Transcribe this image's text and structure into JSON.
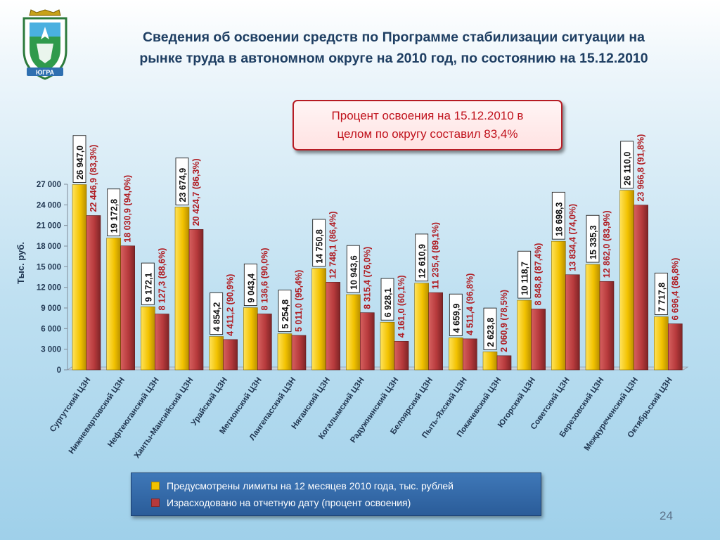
{
  "title_line1": "Сведения об освоении средств по Программе стабилизации ситуации на",
  "title_line2": "рынке труда в автономном округе на 2010 год, по состоянию на 15.12.2010",
  "callout_line1": "Процент освоения на 15.12.2010 в",
  "callout_line2": "целом по округу составил 83,4%",
  "page_number": "24",
  "colors": {
    "planned": "#f2c200",
    "spent": "#b73a3c",
    "title": "#1f3f63",
    "callout": "#c0121c"
  },
  "logo": {
    "icon": "coat-of-arms-icon",
    "ribbon_text": "ЮГРА"
  },
  "chart_data": {
    "type": "bar",
    "ylabel": "Тыс. руб.",
    "ylim": [
      0,
      27000
    ],
    "yticks": [
      "0",
      "3 000",
      "6 000",
      "9 000",
      "12 000",
      "15 000",
      "18 000",
      "21 000",
      "24 000",
      "27 000"
    ],
    "grid": false,
    "legend_position": "bottom",
    "categories": [
      "Сургутский ЦЗН",
      "Нижневартовский ЦЗН",
      "Нефтеюганский ЦЗН",
      "Ханты-Мансийский ЦЗН",
      "Урайский ЦЗН",
      "Мегионский ЦЗН",
      "Лангепасский ЦЗН",
      "Няганский ЦЗН",
      "Когалымский ЦЗН",
      "Радужнинский ЦЗН",
      "Белоярский ЦЗН",
      "Пыть-Яхский ЦЗН",
      "Покачевский ЦЗН",
      "Югорский ЦЗН",
      "Советский ЦЗН",
      "Березовский ЦЗН",
      "Междуреченский ЦЗН",
      "Октябрьский ЦЗН"
    ],
    "series": [
      {
        "name": "Предусмотрены  лимиты на 12 месяцев  2010 года, тыс. рублей",
        "values": [
          26947.0,
          19172.8,
          9172.1,
          23674.9,
          4854.2,
          9043.4,
          5254.8,
          14750.8,
          10943.6,
          6928.1,
          12610.9,
          4659.9,
          2623.8,
          10118.7,
          18698.3,
          15335.3,
          26110.0,
          7717.8
        ],
        "labels": [
          "26 947,0",
          "19 172,8",
          "9 172,1",
          "23 674,9",
          "4 854,2",
          "9 043,4",
          "5 254,8",
          "14 750,8",
          "10 943,6",
          "6 928,1",
          "12 610,9",
          "4 659,9",
          "2 623,8",
          "10 118,7",
          "18 698,3",
          "15 335,3",
          "26 110,0",
          "7 717,8"
        ]
      },
      {
        "name": "Израсходовано на отчетную дату (процент освоения)",
        "values": [
          22446.9,
          18030.9,
          8127.3,
          20424.7,
          4411.2,
          8136.6,
          5011.0,
          12748.1,
          8315.4,
          4161.0,
          11235.4,
          4511.4,
          2060.9,
          8848.8,
          13834.4,
          12862.0,
          23966.8,
          6696.4
        ],
        "labels": [
          "22 446,9 (83,3%)",
          "18 030,9 (94,0%)",
          "8 127,3 (88,6%)",
          "20 424,7 (86,3%)",
          "4 411,2 (90,9%)",
          "8 136,6 (90,0%)",
          "5 011,0 (95,4%)",
          "12 748,1 (86,4%)",
          "8 315,4 (76,0%)",
          "4 161,0 (60,1%)",
          "11 235,4 (89,1%)",
          "4 511,4 (96,8%)",
          "2 060,9 (78,5%)",
          "8 848,8 (87,4%)",
          "13 834,4 (74,0%)",
          "12 862,0 (83,9%)",
          "23 966,8 (91,8%)",
          "6 696,4 (86,8%)"
        ]
      }
    ]
  }
}
